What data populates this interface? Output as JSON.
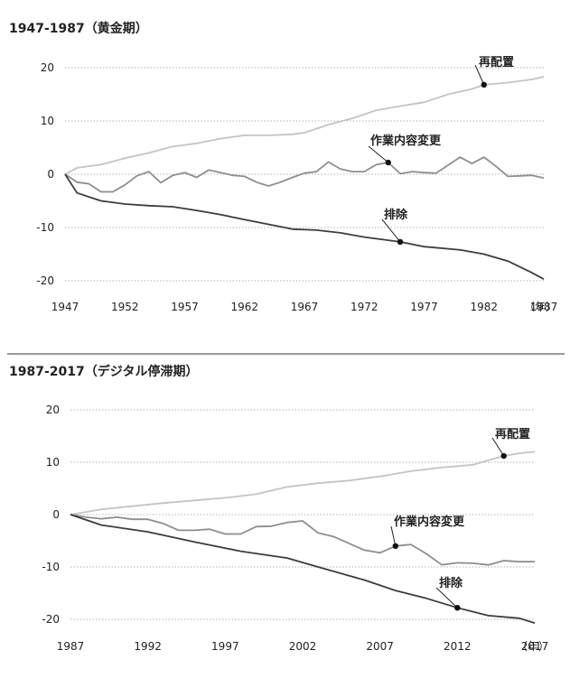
{
  "chart_data": [
    {
      "type": "line",
      "title": "1947-1987（黄金期）",
      "x_unit": "（年）",
      "xlim": [
        1947,
        1987
      ],
      "ylim": [
        -20,
        20
      ],
      "x_ticks": [
        "1947",
        "1952",
        "1957",
        "1962",
        "1967",
        "1972",
        "1977",
        "1982",
        "1987"
      ],
      "y_ticks": [
        "20",
        "10",
        "0",
        "-10",
        "-20"
      ],
      "series": [
        {
          "name": "再配置",
          "color": "#c4c4c4",
          "marker": {
            "x": 1982,
            "y": 16.8
          },
          "points": [
            [
              1947,
              0
            ],
            [
              1948,
              1.2
            ],
            [
              1950,
              1.8
            ],
            [
              1952,
              3.0
            ],
            [
              1954,
              4.0
            ],
            [
              1956,
              5.2
            ],
            [
              1958,
              5.8
            ],
            [
              1960,
              6.7
            ],
            [
              1962,
              7.3
            ],
            [
              1964,
              7.3
            ],
            [
              1966,
              7.5
            ],
            [
              1967,
              7.8
            ],
            [
              1969,
              9.3
            ],
            [
              1971,
              10.5
            ],
            [
              1973,
              12.0
            ],
            [
              1975,
              12.8
            ],
            [
              1977,
              13.5
            ],
            [
              1979,
              15.0
            ],
            [
              1981,
              16.0
            ],
            [
              1982,
              16.8
            ],
            [
              1984,
              17.2
            ],
            [
              1986,
              17.8
            ],
            [
              1987,
              18.3
            ]
          ]
        },
        {
          "name": "作業内容変更",
          "color": "#8e8e8e",
          "marker": {
            "x": 1974,
            "y": 2.2
          },
          "points": [
            [
              1947,
              0
            ],
            [
              1948,
              -1.5
            ],
            [
              1949,
              -1.8
            ],
            [
              1950,
              -3.3
            ],
            [
              1951,
              -3.3
            ],
            [
              1952,
              -2.0
            ],
            [
              1953,
              -0.3
            ],
            [
              1954,
              0.5
            ],
            [
              1955,
              -1.6
            ],
            [
              1956,
              -0.2
            ],
            [
              1957,
              0.3
            ],
            [
              1958,
              -0.6
            ],
            [
              1959,
              0.8
            ],
            [
              1960,
              0.3
            ],
            [
              1961,
              -0.2
            ],
            [
              1962,
              -0.4
            ],
            [
              1963,
              -1.5
            ],
            [
              1964,
              -2.2
            ],
            [
              1965,
              -1.5
            ],
            [
              1966,
              -0.6
            ],
            [
              1967,
              0.2
            ],
            [
              1968,
              0.5
            ],
            [
              1969,
              2.3
            ],
            [
              1970,
              1.0
            ],
            [
              1971,
              0.5
            ],
            [
              1972,
              0.5
            ],
            [
              1973,
              1.8
            ],
            [
              1974,
              2.2
            ],
            [
              1975,
              0.1
            ],
            [
              1976,
              0.5
            ],
            [
              1977,
              0.3
            ],
            [
              1978,
              0.2
            ],
            [
              1979,
              1.7
            ],
            [
              1980,
              3.2
            ],
            [
              1981,
              2.0
            ],
            [
              1982,
              3.2
            ],
            [
              1983,
              1.5
            ],
            [
              1984,
              -0.4
            ],
            [
              1985,
              -0.3
            ],
            [
              1986,
              -0.2
            ],
            [
              1987,
              -0.7
            ]
          ]
        },
        {
          "name": "排除",
          "color": "#3d3d3d",
          "marker": {
            "x": 1975,
            "y": -12.7
          },
          "points": [
            [
              1947,
              0
            ],
            [
              1948,
              -3.5
            ],
            [
              1950,
              -5.0
            ],
            [
              1952,
              -5.6
            ],
            [
              1954,
              -5.9
            ],
            [
              1956,
              -6.1
            ],
            [
              1958,
              -6.8
            ],
            [
              1960,
              -7.6
            ],
            [
              1962,
              -8.5
            ],
            [
              1964,
              -9.4
            ],
            [
              1966,
              -10.3
            ],
            [
              1968,
              -10.5
            ],
            [
              1970,
              -11.0
            ],
            [
              1972,
              -11.8
            ],
            [
              1975,
              -12.7
            ],
            [
              1977,
              -13.6
            ],
            [
              1980,
              -14.2
            ],
            [
              1982,
              -15.0
            ],
            [
              1984,
              -16.3
            ],
            [
              1986,
              -18.5
            ],
            [
              1987,
              -19.7
            ]
          ]
        }
      ]
    },
    {
      "type": "line",
      "title": "1987-2017（デジタル停滞期）",
      "x_unit": "（年）",
      "xlim": [
        1987,
        2017
      ],
      "ylim": [
        -20,
        20
      ],
      "x_ticks": [
        "1987",
        "1992",
        "1997",
        "2002",
        "2007",
        "2012",
        "2017"
      ],
      "y_ticks": [
        "20",
        "10",
        "0",
        "-10",
        "-20"
      ],
      "series": [
        {
          "name": "再配置",
          "color": "#c4c4c4",
          "marker": {
            "x": 2015,
            "y": 11.2
          },
          "points": [
            [
              1987,
              0
            ],
            [
              1989,
              1.0
            ],
            [
              1991,
              1.6
            ],
            [
              1993,
              2.2
            ],
            [
              1995,
              2.7
            ],
            [
              1997,
              3.2
            ],
            [
              1999,
              3.9
            ],
            [
              2001,
              5.3
            ],
            [
              2003,
              6.0
            ],
            [
              2005,
              6.5
            ],
            [
              2007,
              7.3
            ],
            [
              2009,
              8.3
            ],
            [
              2011,
              9.0
            ],
            [
              2013,
              9.5
            ],
            [
              2015,
              11.2
            ],
            [
              2016,
              11.7
            ],
            [
              2017,
              12.0
            ]
          ]
        },
        {
          "name": "作業内容変更",
          "color": "#8e8e8e",
          "marker": {
            "x": 2008,
            "y": -6.0
          },
          "points": [
            [
              1987,
              0
            ],
            [
              1988,
              -0.5
            ],
            [
              1989,
              -0.8
            ],
            [
              1990,
              -0.5
            ],
            [
              1991,
              -0.9
            ],
            [
              1992,
              -0.9
            ],
            [
              1993,
              -1.7
            ],
            [
              1994,
              -3.0
            ],
            [
              1995,
              -3.0
            ],
            [
              1996,
              -2.8
            ],
            [
              1997,
              -3.7
            ],
            [
              1998,
              -3.7
            ],
            [
              1999,
              -2.3
            ],
            [
              2000,
              -2.2
            ],
            [
              2001,
              -1.5
            ],
            [
              2002,
              -1.2
            ],
            [
              2003,
              -3.5
            ],
            [
              2004,
              -4.2
            ],
            [
              2005,
              -5.5
            ],
            [
              2006,
              -6.8
            ],
            [
              2007,
              -7.3
            ],
            [
              2008,
              -6.0
            ],
            [
              2009,
              -5.7
            ],
            [
              2010,
              -7.5
            ],
            [
              2011,
              -9.6
            ],
            [
              2012,
              -9.2
            ],
            [
              2013,
              -9.3
            ],
            [
              2014,
              -9.6
            ],
            [
              2015,
              -8.8
            ],
            [
              2016,
              -9.0
            ],
            [
              2017,
              -9.0
            ]
          ]
        },
        {
          "name": "排除",
          "color": "#3d3d3d",
          "marker": {
            "x": 2012,
            "y": -17.8
          },
          "points": [
            [
              1987,
              0
            ],
            [
              1989,
              -2.0
            ],
            [
              1992,
              -3.3
            ],
            [
              1995,
              -5.2
            ],
            [
              1998,
              -7.0
            ],
            [
              2001,
              -8.3
            ],
            [
              2003,
              -10.0
            ],
            [
              2006,
              -12.5
            ],
            [
              2008,
              -14.5
            ],
            [
              2010,
              -16.0
            ],
            [
              2012,
              -17.8
            ],
            [
              2014,
              -19.3
            ],
            [
              2016,
              -19.8
            ],
            [
              2017,
              -20.7
            ]
          ]
        }
      ]
    }
  ]
}
